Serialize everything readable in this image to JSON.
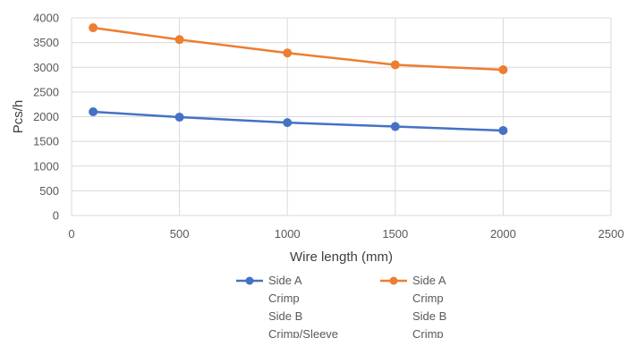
{
  "chart_data": {
    "type": "line",
    "title": "",
    "xlabel": "Wire length (mm)",
    "ylabel": "Pcs/h",
    "xlim": [
      0,
      2500
    ],
    "ylim": [
      0,
      4000
    ],
    "x_ticks": [
      0,
      500,
      1000,
      1500,
      2000,
      2500
    ],
    "y_ticks": [
      0,
      500,
      1000,
      1500,
      2000,
      2500,
      3000,
      3500,
      4000
    ],
    "grid": "vertical and horizontal",
    "legend_position": "bottom",
    "series": [
      {
        "name": "Side A Crimp Side B Crimp/Sleeve",
        "legend_lines": [
          "Side A",
          "Crimp",
          "Side B",
          "Crimp/Sleeve"
        ],
        "color": "#4472C4",
        "x": [
          100,
          500,
          1000,
          1500,
          2000
        ],
        "y": [
          2100,
          1990,
          1880,
          1800,
          1720
        ]
      },
      {
        "name": "Side A Crimp Side B Crimp",
        "legend_lines": [
          "Side A",
          "Crimp",
          "Side B",
          "Crimp"
        ],
        "color": "#ED7D31",
        "x": [
          100,
          500,
          1000,
          1500,
          2000
        ],
        "y": [
          3800,
          3560,
          3290,
          3050,
          2950
        ]
      }
    ]
  }
}
